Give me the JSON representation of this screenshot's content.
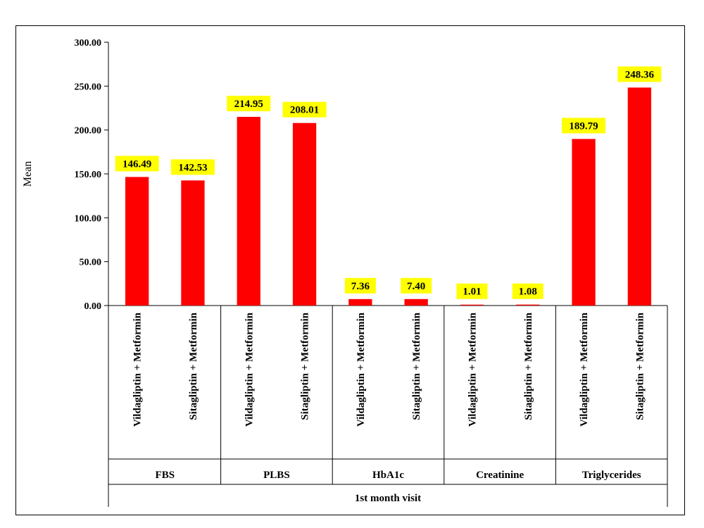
{
  "chart_data": {
    "type": "bar",
    "ylabel": "Mean",
    "xlabel": "1st month visit",
    "ylim": [
      0,
      300
    ],
    "yticks": [
      "0.00",
      "50.00",
      "100.00",
      "150.00",
      "200.00",
      "250.00",
      "300.00"
    ],
    "bar_color": "#ff0000",
    "label_bg": "#ffff00",
    "groups": [
      {
        "name": "FBS",
        "bars": [
          {
            "label": "Vildagliptin + Metformin",
            "value": 146.49,
            "text": "146.49"
          },
          {
            "label": "Sitagliptin + Metformin",
            "value": 142.53,
            "text": "142.53"
          }
        ]
      },
      {
        "name": "PLBS",
        "bars": [
          {
            "label": "Vildagliptin + Metformin",
            "value": 214.95,
            "text": "214.95"
          },
          {
            "label": "Sitagliptin + Metformin",
            "value": 208.01,
            "text": "208.01"
          }
        ]
      },
      {
        "name": "HbA1c",
        "bars": [
          {
            "label": "Vildagliptin + Metformin",
            "value": 7.36,
            "text": "7.36"
          },
          {
            "label": "Sitagliptin + Metformin",
            "value": 7.4,
            "text": "7.40"
          }
        ]
      },
      {
        "name": "Creatinine",
        "bars": [
          {
            "label": "Vildagliptin + Metformin",
            "value": 1.01,
            "text": "1.01"
          },
          {
            "label": "Sitagliptin + Metformin",
            "value": 1.08,
            "text": "1.08"
          }
        ]
      },
      {
        "name": "Triglycerides",
        "bars": [
          {
            "label": "Vildagliptin + Metformin",
            "value": 189.79,
            "text": "189.79"
          },
          {
            "label": "Sitagliptin + Metformin",
            "value": 248.36,
            "text": "248.36"
          }
        ]
      }
    ]
  }
}
